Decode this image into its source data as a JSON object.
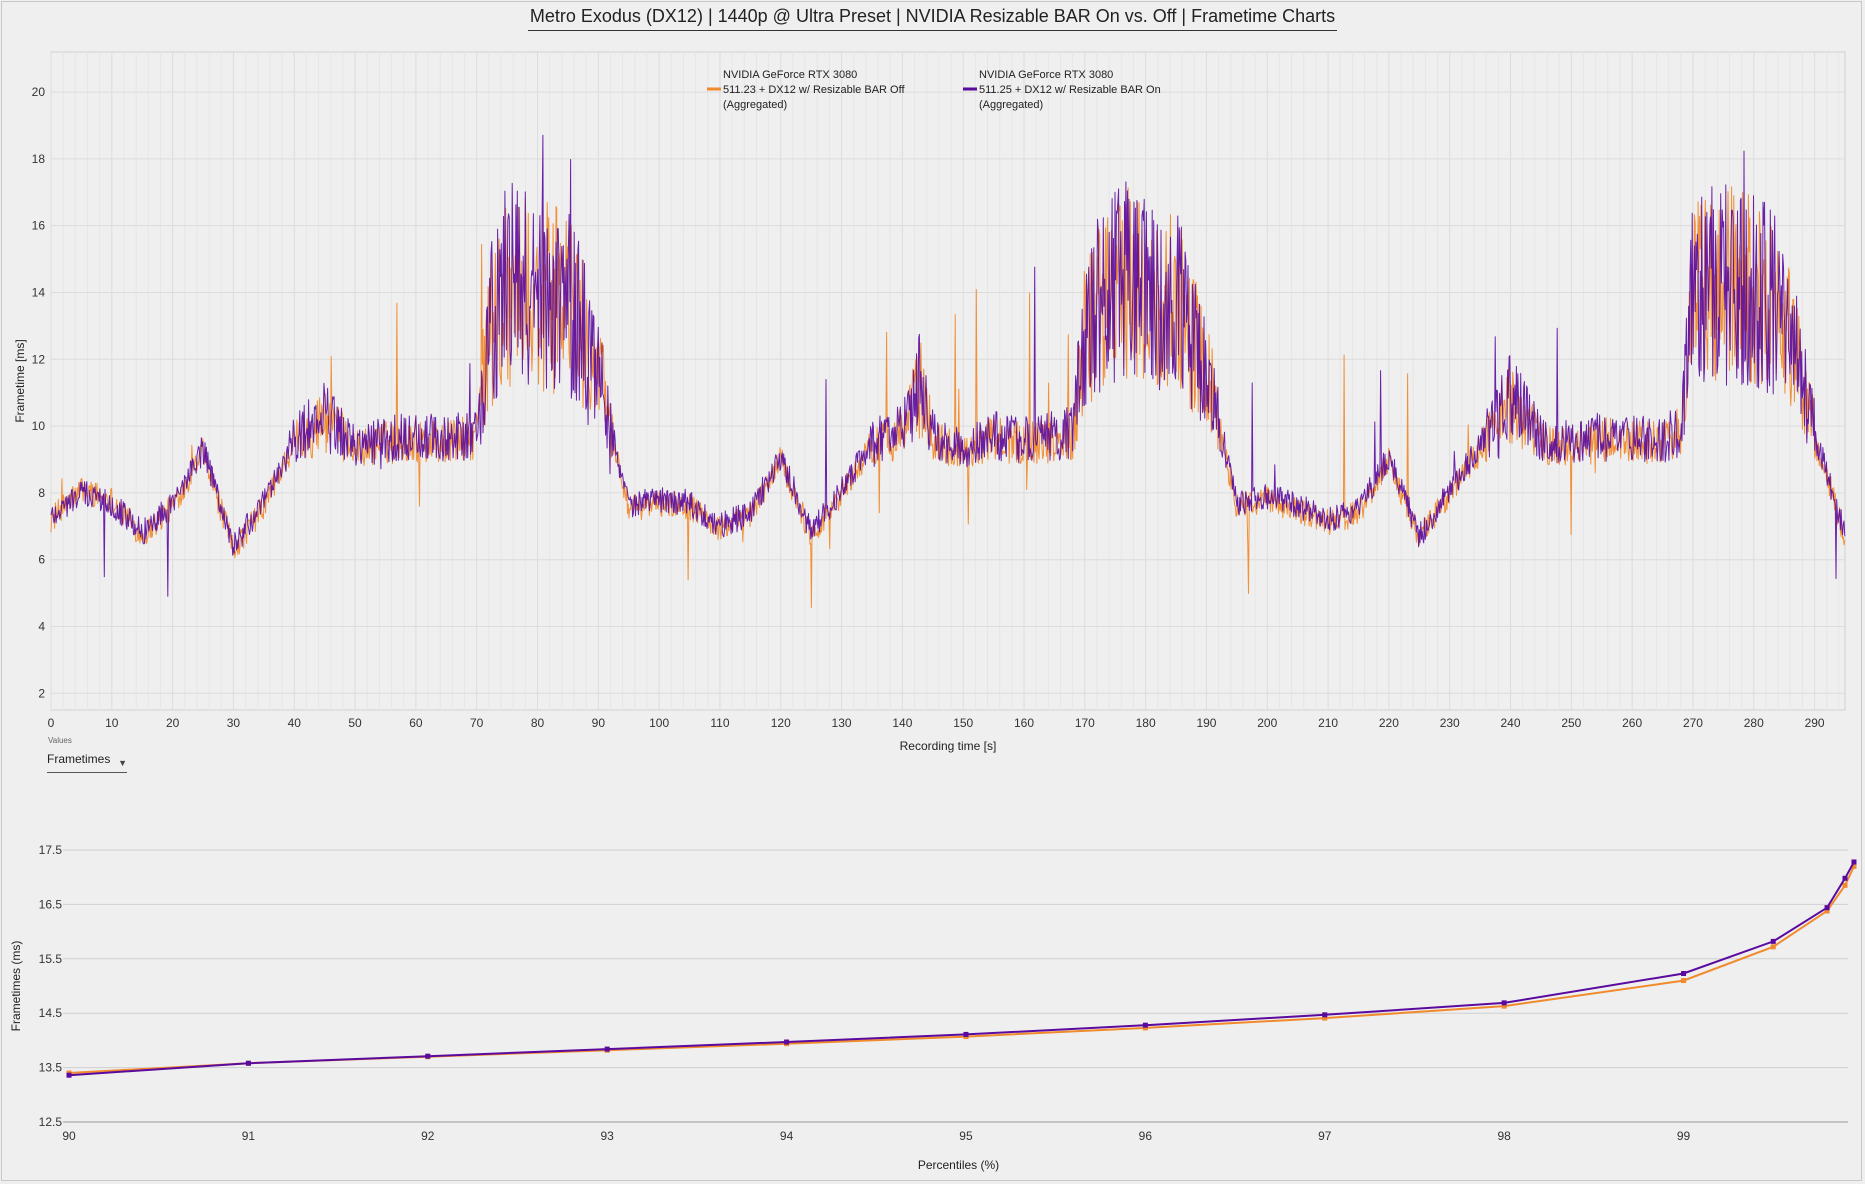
{
  "title": "Metro Exodus (DX12) | 1440p @ Ultra Preset | NVIDIA Resizable BAR On vs. Off | Frametime Charts",
  "colors": {
    "bar_off": "#f08a2c",
    "bar_on": "#5a0a9e",
    "grid": "#dcdcdc",
    "background": "#efefef"
  },
  "values_control": {
    "caption": "Values",
    "selected": "Frametimes",
    "icon": "caret-down-icon"
  },
  "chart_data": [
    {
      "type": "line",
      "xlabel": "Recording time [s]",
      "ylabel": "Frametime [ms]",
      "xlim": [
        0,
        295
      ],
      "ylim": [
        1.5,
        21.2
      ],
      "x_ticks": [
        "0",
        "10",
        "20",
        "30",
        "40",
        "50",
        "60",
        "70",
        "80",
        "90",
        "100",
        "110",
        "120",
        "130",
        "140",
        "150",
        "160",
        "170",
        "180",
        "190",
        "200",
        "210",
        "220",
        "230",
        "240",
        "250",
        "260",
        "270",
        "280",
        "290"
      ],
      "y_ticks": [
        "2",
        "4",
        "6",
        "8",
        "10",
        "12",
        "14",
        "16",
        "18",
        "20"
      ],
      "grid": true,
      "legend_position": "top",
      "series": [
        {
          "name_lines": [
            "NVIDIA GeForce RTX 3080",
            "511.23 + DX12 w/ Resizable BAR Off",
            "(Aggregated)"
          ],
          "color": "#f08a2c",
          "x": [
            0,
            5,
            10,
            15,
            20,
            25,
            30,
            35,
            40,
            45,
            50,
            55,
            60,
            65,
            70,
            72,
            75,
            80,
            85,
            90,
            95,
            100,
            105,
            110,
            115,
            120,
            125,
            130,
            135,
            140,
            143,
            145,
            150,
            155,
            160,
            165,
            168,
            170,
            175,
            180,
            185,
            190,
            195,
            200,
            205,
            210,
            215,
            220,
            225,
            230,
            235,
            240,
            245,
            250,
            255,
            260,
            265,
            268,
            270,
            275,
            280,
            285,
            290,
            295
          ],
          "y": [
            7.2,
            8.1,
            7.8,
            6.7,
            7.6,
            9.2,
            6.3,
            7.6,
            9.5,
            10.2,
            9.3,
            9.5,
            9.6,
            9.5,
            9.7,
            12.8,
            14.2,
            13.9,
            13.7,
            11.6,
            7.5,
            7.7,
            7.6,
            6.9,
            7.3,
            9.0,
            6.7,
            8.0,
            9.4,
            9.8,
            11.2,
            9.6,
            9.2,
            9.6,
            9.5,
            9.6,
            9.7,
            12.8,
            14.3,
            13.9,
            13.6,
            11.7,
            7.6,
            7.8,
            7.5,
            7.1,
            7.4,
            9.0,
            6.6,
            8.0,
            9.3,
            10.8,
            9.5,
            9.4,
            9.6,
            9.5,
            9.5,
            9.8,
            13.8,
            14.2,
            14.0,
            13.3,
            9.8,
            6.6
          ]
        },
        {
          "name_lines": [
            "NVIDIA GeForce RTX 3080",
            "511.25 + DX12 w/ Resizable BAR On",
            "(Aggregated)"
          ],
          "color": "#5a0a9e",
          "x": [
            0,
            5,
            10,
            15,
            20,
            25,
            30,
            35,
            40,
            45,
            50,
            55,
            60,
            65,
            70,
            72,
            75,
            80,
            85,
            90,
            95,
            100,
            105,
            110,
            115,
            120,
            125,
            130,
            135,
            140,
            143,
            145,
            150,
            155,
            160,
            165,
            168,
            170,
            175,
            180,
            185,
            190,
            195,
            200,
            205,
            210,
            215,
            220,
            225,
            230,
            235,
            240,
            245,
            250,
            255,
            260,
            265,
            268,
            270,
            275,
            280,
            285,
            290,
            295
          ],
          "y": [
            7.3,
            8.0,
            7.7,
            6.8,
            7.7,
            9.3,
            6.4,
            7.7,
            9.6,
            10.3,
            9.4,
            9.6,
            9.7,
            9.6,
            9.8,
            12.9,
            14.3,
            14.0,
            13.8,
            11.7,
            7.6,
            7.8,
            7.7,
            7.0,
            7.4,
            9.1,
            6.8,
            8.1,
            9.5,
            9.9,
            11.3,
            9.7,
            9.3,
            9.7,
            9.6,
            9.7,
            9.8,
            12.9,
            14.4,
            14.0,
            13.7,
            11.8,
            7.7,
            7.9,
            7.6,
            7.2,
            7.5,
            9.1,
            6.7,
            8.1,
            9.4,
            10.9,
            9.6,
            9.5,
            9.7,
            9.6,
            9.6,
            9.9,
            13.9,
            14.3,
            14.1,
            13.4,
            9.9,
            6.7
          ]
        }
      ]
    },
    {
      "type": "line",
      "xlabel": "Percentiles (%)",
      "ylabel": "Frametimes (ms)",
      "xlim": [
        90,
        99.9
      ],
      "ylim": [
        12.5,
        17.5
      ],
      "x_ticks": [
        "90",
        "91",
        "92",
        "93",
        "94",
        "95",
        "96",
        "97",
        "98",
        "99"
      ],
      "y_ticks": [
        "12.5",
        "13.5",
        "14.5",
        "15.5",
        "16.5",
        "17.5"
      ],
      "grid": true,
      "series": [
        {
          "name": "511.23 + DX12 w/ Resizable BAR Off",
          "color": "#f08a2c",
          "x": [
            90,
            91,
            92,
            93,
            94,
            95,
            96,
            97,
            98,
            99,
            99.5,
            99.8,
            99.9,
            99.95
          ],
          "y": [
            13.4,
            13.58,
            13.7,
            13.82,
            13.94,
            14.07,
            14.23,
            14.41,
            14.63,
            15.1,
            15.72,
            16.38,
            16.85,
            17.2
          ]
        },
        {
          "name": "511.25 + DX12 w/ Resizable BAR On",
          "color": "#5a0a9e",
          "x": [
            90,
            91,
            92,
            93,
            94,
            95,
            96,
            97,
            98,
            99,
            99.5,
            99.8,
            99.9,
            99.95
          ],
          "y": [
            13.36,
            13.58,
            13.71,
            13.84,
            13.97,
            14.11,
            14.28,
            14.47,
            14.69,
            15.23,
            15.82,
            16.44,
            16.98,
            17.28
          ]
        }
      ]
    }
  ]
}
